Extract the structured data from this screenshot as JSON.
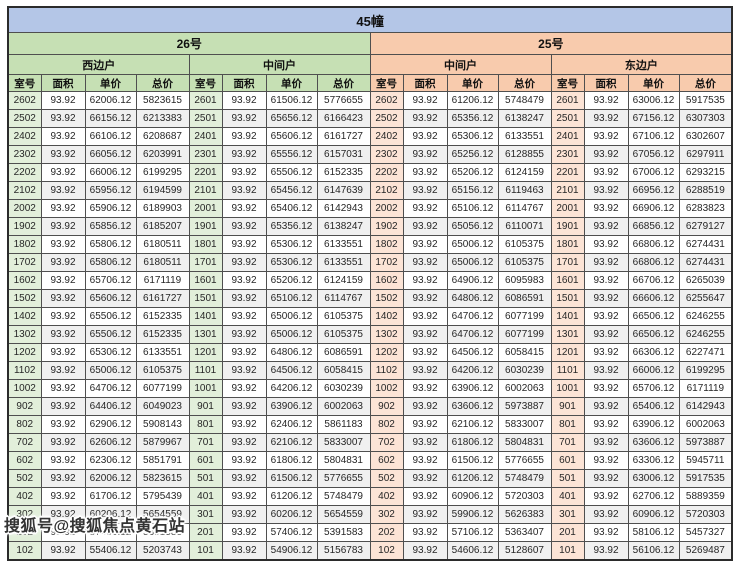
{
  "page": {
    "title": "45幢",
    "watermark": "搜狐号@搜狐焦点黄石站"
  },
  "table": {
    "buildings": [
      {
        "label": "26号"
      },
      {
        "label": "25号"
      }
    ],
    "sections": [
      {
        "label": "西边户"
      },
      {
        "label": "中间户"
      },
      {
        "label": "中间户"
      },
      {
        "label": "东边户"
      }
    ],
    "columns": [
      "室号",
      "面积",
      "单价",
      "总价"
    ],
    "colors": {
      "title_bg": "#b4c6e7",
      "green": "#c6e0b4",
      "green_light": "#e2efda",
      "peach": "#f8cbad",
      "peach_light": "#fce4d6",
      "alt_row": "#f0f0f0"
    },
    "rows": [
      [
        "2602",
        "93.92",
        "62006.12",
        "5823615",
        "2601",
        "93.92",
        "61506.12",
        "5776655",
        "2602",
        "93.92",
        "61206.12",
        "5748479",
        "2601",
        "93.92",
        "63006.12",
        "5917535"
      ],
      [
        "2502",
        "93.92",
        "66156.12",
        "6213383",
        "2501",
        "93.92",
        "65656.12",
        "6166423",
        "2502",
        "93.92",
        "65356.12",
        "6138247",
        "2501",
        "93.92",
        "67156.12",
        "6307303"
      ],
      [
        "2402",
        "93.92",
        "66106.12",
        "6208687",
        "2401",
        "93.92",
        "65606.12",
        "6161727",
        "2402",
        "93.92",
        "65306.12",
        "6133551",
        "2401",
        "93.92",
        "67106.12",
        "6302607"
      ],
      [
        "2302",
        "93.92",
        "66056.12",
        "6203991",
        "2301",
        "93.92",
        "65556.12",
        "6157031",
        "2302",
        "93.92",
        "65256.12",
        "6128855",
        "2301",
        "93.92",
        "67056.12",
        "6297911"
      ],
      [
        "2202",
        "93.92",
        "66006.12",
        "6199295",
        "2201",
        "93.92",
        "65506.12",
        "6152335",
        "2202",
        "93.92",
        "65206.12",
        "6124159",
        "2201",
        "93.92",
        "67006.12",
        "6293215"
      ],
      [
        "2102",
        "93.92",
        "65956.12",
        "6194599",
        "2101",
        "93.92",
        "65456.12",
        "6147639",
        "2102",
        "93.92",
        "65156.12",
        "6119463",
        "2101",
        "93.92",
        "66956.12",
        "6288519"
      ],
      [
        "2002",
        "93.92",
        "65906.12",
        "6189903",
        "2001",
        "93.92",
        "65406.12",
        "6142943",
        "2002",
        "93.92",
        "65106.12",
        "6114767",
        "2001",
        "93.92",
        "66906.12",
        "6283823"
      ],
      [
        "1902",
        "93.92",
        "65856.12",
        "6185207",
        "1901",
        "93.92",
        "65356.12",
        "6138247",
        "1902",
        "93.92",
        "65056.12",
        "6110071",
        "1901",
        "93.92",
        "66856.12",
        "6279127"
      ],
      [
        "1802",
        "93.92",
        "65806.12",
        "6180511",
        "1801",
        "93.92",
        "65306.12",
        "6133551",
        "1802",
        "93.92",
        "65006.12",
        "6105375",
        "1801",
        "93.92",
        "66806.12",
        "6274431"
      ],
      [
        "1702",
        "93.92",
        "65806.12",
        "6180511",
        "1701",
        "93.92",
        "65306.12",
        "6133551",
        "1702",
        "93.92",
        "65006.12",
        "6105375",
        "1701",
        "93.92",
        "66806.12",
        "6274431"
      ],
      [
        "1602",
        "93.92",
        "65706.12",
        "6171119",
        "1601",
        "93.92",
        "65206.12",
        "6124159",
        "1602",
        "93.92",
        "64906.12",
        "6095983",
        "1601",
        "93.92",
        "66706.12",
        "6265039"
      ],
      [
        "1502",
        "93.92",
        "65606.12",
        "6161727",
        "1501",
        "93.92",
        "65106.12",
        "6114767",
        "1502",
        "93.92",
        "64806.12",
        "6086591",
        "1501",
        "93.92",
        "66606.12",
        "6255647"
      ],
      [
        "1402",
        "93.92",
        "65506.12",
        "6152335",
        "1401",
        "93.92",
        "65006.12",
        "6105375",
        "1402",
        "93.92",
        "64706.12",
        "6077199",
        "1401",
        "93.92",
        "66506.12",
        "6246255"
      ],
      [
        "1302",
        "93.92",
        "65506.12",
        "6152335",
        "1301",
        "93.92",
        "65006.12",
        "6105375",
        "1302",
        "93.92",
        "64706.12",
        "6077199",
        "1301",
        "93.92",
        "66506.12",
        "6246255"
      ],
      [
        "1202",
        "93.92",
        "65306.12",
        "6133551",
        "1201",
        "93.92",
        "64806.12",
        "6086591",
        "1202",
        "93.92",
        "64506.12",
        "6058415",
        "1201",
        "93.92",
        "66306.12",
        "6227471"
      ],
      [
        "1102",
        "93.92",
        "65006.12",
        "6105375",
        "1101",
        "93.92",
        "64506.12",
        "6058415",
        "1102",
        "93.92",
        "64206.12",
        "6030239",
        "1101",
        "93.92",
        "66006.12",
        "6199295"
      ],
      [
        "1002",
        "93.92",
        "64706.12",
        "6077199",
        "1001",
        "93.92",
        "64206.12",
        "6030239",
        "1002",
        "93.92",
        "63906.12",
        "6002063",
        "1001",
        "93.92",
        "65706.12",
        "6171119"
      ],
      [
        "902",
        "93.92",
        "64406.12",
        "6049023",
        "901",
        "93.92",
        "63906.12",
        "6002063",
        "902",
        "93.92",
        "63606.12",
        "5973887",
        "901",
        "93.92",
        "65406.12",
        "6142943"
      ],
      [
        "802",
        "93.92",
        "62906.12",
        "5908143",
        "801",
        "93.92",
        "62406.12",
        "5861183",
        "802",
        "93.92",
        "62106.12",
        "5833007",
        "801",
        "93.92",
        "63906.12",
        "6002063"
      ],
      [
        "702",
        "93.92",
        "62606.12",
        "5879967",
        "701",
        "93.92",
        "62106.12",
        "5833007",
        "702",
        "93.92",
        "61806.12",
        "5804831",
        "701",
        "93.92",
        "63606.12",
        "5973887"
      ],
      [
        "602",
        "93.92",
        "62306.12",
        "5851791",
        "601",
        "93.92",
        "61806.12",
        "5804831",
        "602",
        "93.92",
        "61506.12",
        "5776655",
        "601",
        "93.92",
        "63306.12",
        "5945711"
      ],
      [
        "502",
        "93.92",
        "62006.12",
        "5823615",
        "501",
        "93.92",
        "61506.12",
        "5776655",
        "502",
        "93.92",
        "61206.12",
        "5748479",
        "501",
        "93.92",
        "63006.12",
        "5917535"
      ],
      [
        "402",
        "93.92",
        "61706.12",
        "5795439",
        "401",
        "93.92",
        "61206.12",
        "5748479",
        "402",
        "93.92",
        "60906.12",
        "5720303",
        "401",
        "93.92",
        "62706.12",
        "5889359"
      ],
      [
        "302",
        "93.92",
        "60206.12",
        "5654559",
        "301",
        "93.92",
        "60206.12",
        "5654559",
        "302",
        "93.92",
        "59906.12",
        "5626383",
        "301",
        "93.92",
        "60906.12",
        "5720303"
      ],
      [
        "202",
        "93.92",
        "57406.12",
        "5391583",
        "201",
        "93.92",
        "57406.12",
        "5391583",
        "202",
        "93.92",
        "57106.12",
        "5363407",
        "201",
        "93.92",
        "58106.12",
        "5457327"
      ],
      [
        "102",
        "93.92",
        "55406.12",
        "5203743",
        "101",
        "93.92",
        "54906.12",
        "5156783",
        "102",
        "93.92",
        "54606.12",
        "5128607",
        "101",
        "93.92",
        "56106.12",
        "5269487"
      ]
    ]
  }
}
